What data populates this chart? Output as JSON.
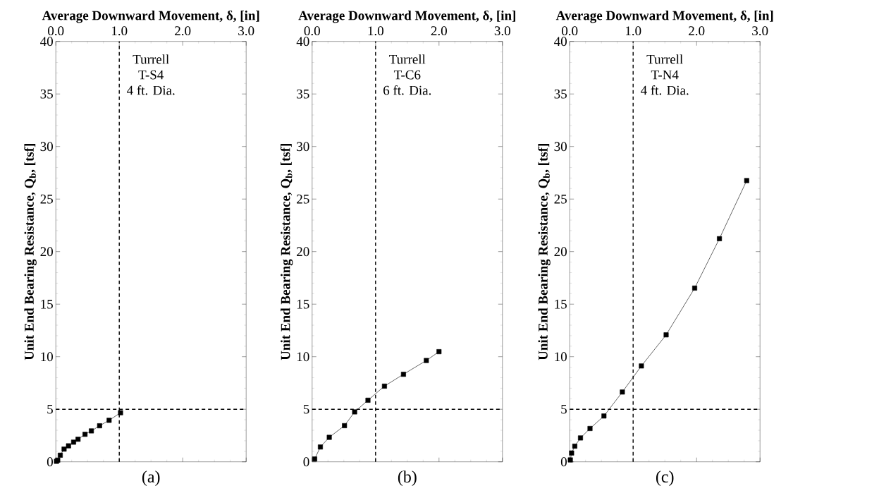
{
  "chart_data": [
    {
      "type": "line",
      "xlabel": "Average Downward Movement, δ, [in]",
      "ylabel": "Unit End Bearing Resistance, Q$_{b}$, [tsf]",
      "x": [
        0.01,
        0.03,
        0.07,
        0.13,
        0.2,
        0.28,
        0.35,
        0.46,
        0.56,
        0.69,
        0.84,
        1.02
      ],
      "values": [
        0.05,
        0.16,
        0.63,
        1.21,
        1.52,
        1.87,
        2.15,
        2.62,
        2.94,
        3.43,
        3.95,
        4.67
      ],
      "color": "#000000",
      "marker": "square",
      "line_style": "solid",
      "grid": false,
      "xlim": [
        0,
        3
      ],
      "ylim": [
        0,
        40
      ],
      "xticks": [
        {
          "value": 0,
          "label": "0.0"
        },
        {
          "value": 1,
          "label": "1.0"
        },
        {
          "value": 2,
          "label": "2.0"
        },
        {
          "value": 3,
          "label": "3.0"
        }
      ],
      "yticks": [
        0,
        5,
        10,
        15,
        20,
        25,
        30,
        35,
        40
      ],
      "ref_lines": [
        {
          "axis": "x",
          "value": 1,
          "color": "#000000",
          "line_style": "dashed"
        },
        {
          "axis": "y",
          "value": 5,
          "color": "#000000",
          "line_style": "dashed"
        }
      ],
      "annotations": [
        "Turrell",
        "T-S4",
        "4 ft. Dia.",
        "(a)"
      ]
    },
    {
      "type": "line",
      "xlabel": "Average Downward Movement, δ, [in]",
      "ylabel": "Unit End Bearing Resistance, Q$_{b}$, [tsf]",
      "x": [
        0.04,
        0.13,
        0.27,
        0.51,
        0.67,
        0.88,
        1.14,
        1.44,
        1.8,
        2.0
      ],
      "values": [
        0.27,
        1.41,
        2.33,
        3.44,
        4.75,
        5.86,
        7.2,
        8.33,
        9.64,
        10.48
      ],
      "color": "#000000",
      "marker": "square",
      "line_style": "solid",
      "grid": false,
      "xlim": [
        0,
        3
      ],
      "ylim": [
        0,
        40
      ],
      "xticks": [
        {
          "value": 0,
          "label": "0.0"
        },
        {
          "value": 1,
          "label": "1.0"
        },
        {
          "value": 2,
          "label": "2.0"
        },
        {
          "value": 3,
          "label": "3.0"
        }
      ],
      "yticks": [
        0,
        5,
        10,
        15,
        20,
        25,
        30,
        35,
        40
      ],
      "ref_lines": [
        {
          "axis": "x",
          "value": 1,
          "color": "#000000",
          "line_style": "dashed"
        },
        {
          "axis": "y",
          "value": 5,
          "color": "#000000",
          "line_style": "dashed"
        }
      ],
      "annotations": [
        "Turrell",
        "T-C6",
        "6 ft. Dia.",
        "(b)"
      ]
    },
    {
      "type": "line",
      "xlabel": "Average Downward Movement, δ, [in]",
      "ylabel": "Unit End Bearing Resistance, Q$_{b}$, [tsf]",
      "x": [
        0.01,
        0.03,
        0.08,
        0.17,
        0.32,
        0.54,
        0.83,
        1.13,
        1.52,
        1.97,
        2.36,
        2.79
      ],
      "values": [
        0.18,
        0.84,
        1.49,
        2.27,
        3.17,
        4.36,
        6.64,
        9.12,
        12.08,
        16.53,
        21.23,
        26.76
      ],
      "color": "#000000",
      "marker": "square",
      "line_style": "solid",
      "grid": false,
      "xlim": [
        0,
        3
      ],
      "ylim": [
        0,
        40
      ],
      "xticks": [
        {
          "value": 0,
          "label": "0.0"
        },
        {
          "value": 1,
          "label": "1.0"
        },
        {
          "value": 2,
          "label": "2.0"
        },
        {
          "value": 3,
          "label": "3.0"
        }
      ],
      "yticks": [
        0,
        5,
        10,
        15,
        20,
        25,
        30,
        35,
        40
      ],
      "ref_lines": [
        {
          "axis": "x",
          "value": 1,
          "color": "#000000",
          "line_style": "dashed"
        },
        {
          "axis": "y",
          "value": 5,
          "color": "#000000",
          "line_style": "dashed"
        }
      ],
      "annotations": [
        "Turrell",
        "T-N4",
        "4 ft. Dia.",
        "(c)"
      ]
    }
  ]
}
